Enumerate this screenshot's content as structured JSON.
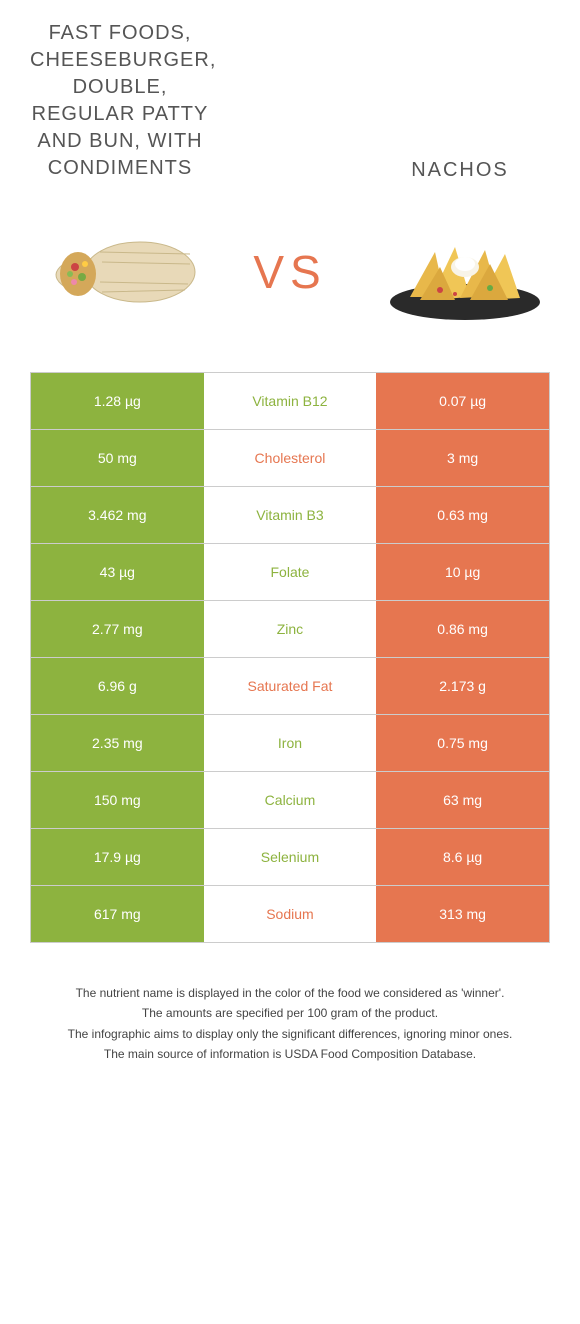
{
  "colors": {
    "left_bg": "#8db33f",
    "right_bg": "#e67650",
    "border": "#cccccc",
    "text_white": "#ffffff",
    "vs_color": "#e67650"
  },
  "food_left": {
    "title": "Fast foods, Cheeseburger, double, regular patty and bun, with condiments"
  },
  "food_right": {
    "title": "Nachos"
  },
  "vs_label": "VS",
  "rows": [
    {
      "nutrient": "Vitamin B12",
      "left": "1.28 µg",
      "right": "0.07 µg",
      "winner": "left"
    },
    {
      "nutrient": "Cholesterol",
      "left": "50 mg",
      "right": "3 mg",
      "winner": "right"
    },
    {
      "nutrient": "Vitamin B3",
      "left": "3.462 mg",
      "right": "0.63 mg",
      "winner": "left"
    },
    {
      "nutrient": "Folate",
      "left": "43 µg",
      "right": "10 µg",
      "winner": "left"
    },
    {
      "nutrient": "Zinc",
      "left": "2.77 mg",
      "right": "0.86 mg",
      "winner": "left"
    },
    {
      "nutrient": "Saturated Fat",
      "left": "6.96 g",
      "right": "2.173 g",
      "winner": "right"
    },
    {
      "nutrient": "Iron",
      "left": "2.35 mg",
      "right": "0.75 mg",
      "winner": "left"
    },
    {
      "nutrient": "Calcium",
      "left": "150 mg",
      "right": "63 mg",
      "winner": "left"
    },
    {
      "nutrient": "Selenium",
      "left": "17.9 µg",
      "right": "8.6 µg",
      "winner": "left"
    },
    {
      "nutrient": "Sodium",
      "left": "617 mg",
      "right": "313 mg",
      "winner": "right"
    }
  ],
  "footer": {
    "line1": "The nutrient name is displayed in the color of the food we considered as 'winner'.",
    "line2": "The amounts are specified per 100 gram of the product.",
    "line3": "The infographic aims to display only the significant differences, ignoring minor ones.",
    "line4": "The main source of information is USDA Food Composition Database."
  }
}
